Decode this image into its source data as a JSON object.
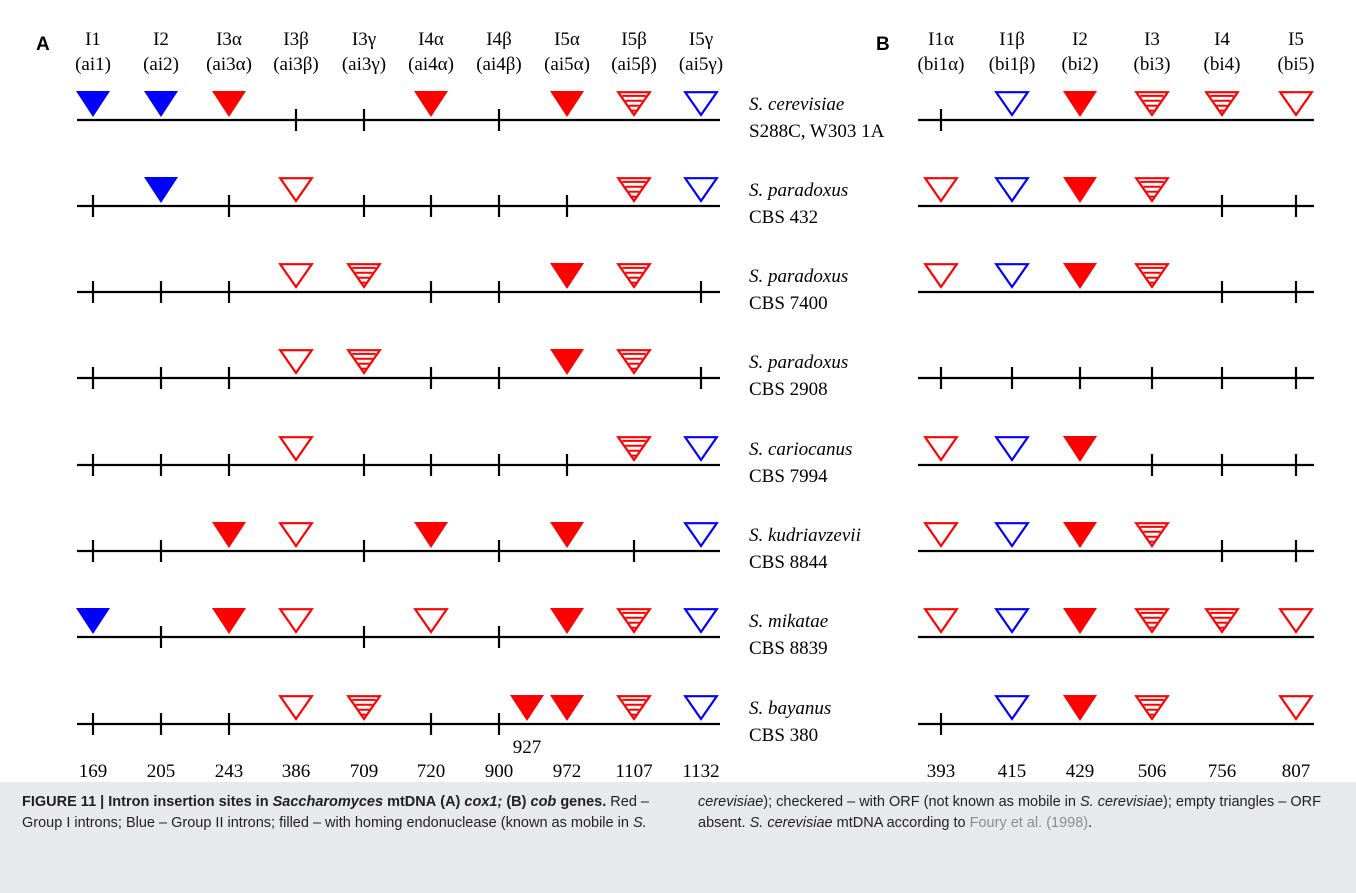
{
  "figure": {
    "panel_a_label": "A",
    "panel_b_label": "B",
    "colors": {
      "group1": "#ff0000",
      "group2": "#0000ff",
      "line": "#000000"
    },
    "panel_a": {
      "headers": [
        {
          "top": "I1",
          "bottom": "(ai1)"
        },
        {
          "top": "I2",
          "bottom": "(ai2)"
        },
        {
          "top": "I3α",
          "bottom": "(ai3α)"
        },
        {
          "top": "I3β",
          "bottom": "(ai3β)"
        },
        {
          "top": "I3γ",
          "bottom": "(ai3γ)"
        },
        {
          "top": "I4α",
          "bottom": "(ai4α)"
        },
        {
          "top": "I4β",
          "bottom": "(ai4β)"
        },
        {
          "top": "I5α",
          "bottom": "(ai5α)"
        },
        {
          "top": "I5β",
          "bottom": "(ai5β)"
        },
        {
          "top": "I5γ",
          "bottom": "(ai5γ)"
        }
      ],
      "positions": [
        "169",
        "205",
        "243",
        "386",
        "709",
        "720",
        "900",
        "972",
        "1107",
        "1132"
      ],
      "extra_label": "927"
    },
    "panel_b": {
      "headers": [
        {
          "top": "I1α",
          "bottom": "(bi1α)"
        },
        {
          "top": "I1β",
          "bottom": "(bi1β)"
        },
        {
          "top": "I2",
          "bottom": "(bi2)"
        },
        {
          "top": "I3",
          "bottom": "(bi3)"
        },
        {
          "top": "I4",
          "bottom": "(bi4)"
        },
        {
          "top": "I5",
          "bottom": "(bi5)"
        }
      ],
      "positions": [
        "393",
        "415",
        "429",
        "506",
        "756",
        "807"
      ]
    },
    "legend_codes": {
      "blue_filled": "bf",
      "red_filled": "rf",
      "red_checkered": "rc",
      "red_empty": "re",
      "blue_empty": "be",
      "tick": "t",
      "none": "-"
    },
    "rows": [
      {
        "species": "S. cerevisiae",
        "strain": "S288C, W303 1A",
        "a": [
          "bf",
          "bf",
          "rf",
          "t",
          "t",
          "rf",
          "t",
          "rf",
          "rc",
          "be"
        ],
        "b": [
          "t",
          "be",
          "rf",
          "rc",
          "rc",
          "re"
        ]
      },
      {
        "species": "S. paradoxus",
        "strain": "CBS 432",
        "a": [
          "t",
          "bf",
          "t",
          "re",
          "t",
          "t",
          "t",
          "t",
          "rc",
          "be"
        ],
        "b": [
          "re",
          "be",
          "rf",
          "rc",
          "t",
          "t"
        ]
      },
      {
        "species": "S. paradoxus",
        "strain": "CBS 7400",
        "a": [
          "t",
          "t",
          "t",
          "re",
          "rc",
          "t",
          "t",
          "rf",
          "rc",
          "t"
        ],
        "b": [
          "re",
          "be",
          "rf",
          "rc",
          "t",
          "t"
        ]
      },
      {
        "species": "S. paradoxus",
        "strain": "CBS 2908",
        "a": [
          "t",
          "t",
          "t",
          "re",
          "rc",
          "t",
          "t",
          "rf",
          "rc",
          "t"
        ],
        "b": [
          "t",
          "t",
          "t",
          "t",
          "t",
          "t"
        ]
      },
      {
        "species": "S. cariocanus",
        "strain": "CBS 7994",
        "a": [
          "t",
          "t",
          "t",
          "re",
          "t",
          "t",
          "t",
          "t",
          "rc",
          "be"
        ],
        "b": [
          "re",
          "be",
          "rf",
          "t",
          "t",
          "t"
        ]
      },
      {
        "species": "S. kudriavzevii",
        "strain": "CBS 8844",
        "a": [
          "t",
          "t",
          "rf",
          "re",
          "t",
          "rf",
          "t",
          "rf",
          "t",
          "be"
        ],
        "b": [
          "re",
          "be",
          "rf",
          "rc",
          "t",
          "t"
        ]
      },
      {
        "species": "S. mikatae",
        "strain": "CBS 8839",
        "a": [
          "bf",
          "t",
          "rf",
          "re",
          "t",
          "re",
          "t",
          "rf",
          "rc",
          "be"
        ],
        "b": [
          "re",
          "be",
          "rf",
          "rc",
          "rc",
          "re"
        ]
      },
      {
        "species": "S. bayanus",
        "strain": "CBS 380",
        "a": [
          "t",
          "t",
          "t",
          "re",
          "rc",
          "t",
          "t",
          "rf",
          "rc",
          "be"
        ],
        "a_extra": "rf",
        "b": [
          "t",
          "be",
          "rf",
          "rc",
          "-",
          "re"
        ]
      }
    ]
  },
  "caption": {
    "label": "FIGURE 11 | Intron insertion sites in",
    "genus": "Saccharomyces",
    "title_mid": "mtDNA",
    "title_a": "(A)",
    "gene_a": "cox1;",
    "title_b": "(B)",
    "gene_b": "cob",
    "title_end": "genes.",
    "text_1": "Red – Group I introns; Blue – Group II introns; filled – with homing endonuclease (known as mobile in",
    "species_1": "S. cerevisiae",
    "text_2": "); checkered – with ORF (not known as mobile in",
    "species_2": "S. cerevisiae",
    "text_3": "); empty triangles – ORF absent.",
    "species_3": "S. cerevisiae",
    "text_4": "mtDNA according to",
    "reference": "Foury et al. (1998)",
    "text_5": "."
  }
}
